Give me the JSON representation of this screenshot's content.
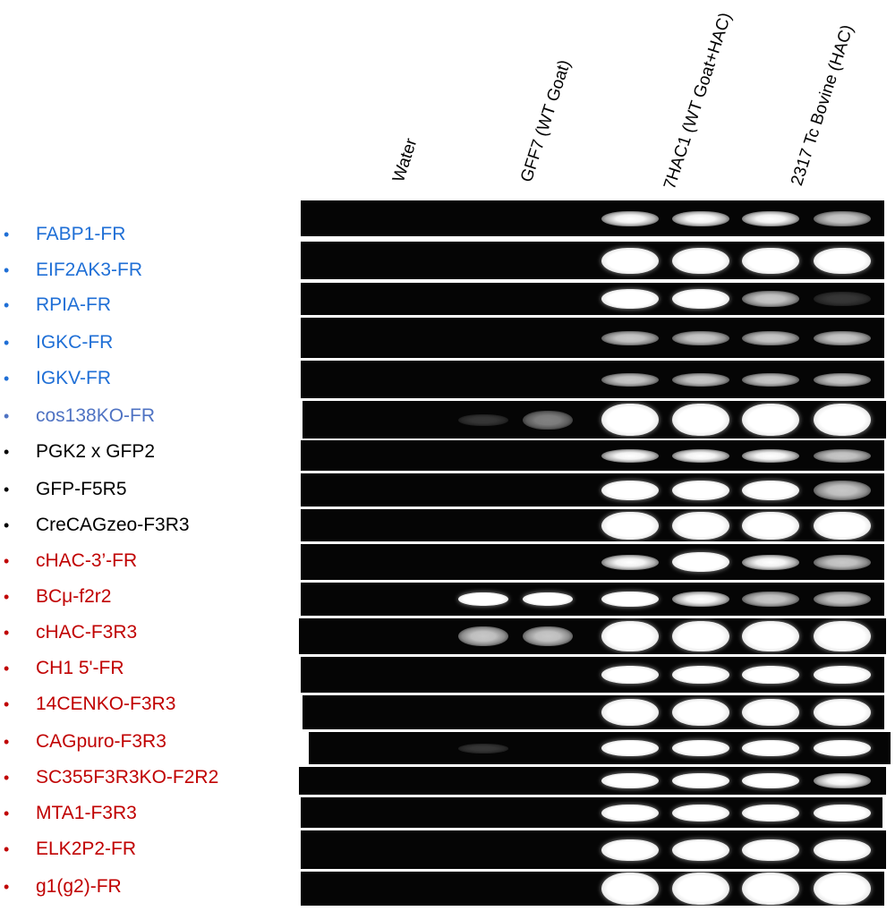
{
  "lanes": [
    {
      "name": "water",
      "label": "Water"
    },
    {
      "name": "gff7",
      "label": "GFF7 (WT Goat)"
    },
    {
      "name": "7hac1",
      "label": "7HAC1 (WT Goat+HAC)"
    },
    {
      "name": "2317",
      "label": "2317 Tc Bovine (HAC)"
    }
  ],
  "colors": {
    "blue": "#1f6fd6",
    "slate": "#4f73c3",
    "black": "#000000",
    "red": "#c00000"
  },
  "rows": [
    {
      "label": "FABP1-FR",
      "color": "blue"
    },
    {
      "label": "EIF2AK3-FR",
      "color": "blue"
    },
    {
      "label": "RPIA-FR",
      "color": "blue"
    },
    {
      "label": "IGKC-FR",
      "color": "blue"
    },
    {
      "label": "IGKV-FR",
      "color": "blue"
    },
    {
      "label": "cos138KO-FR",
      "color": "slate"
    },
    {
      "label": "PGK2 x GFP2",
      "color": "black"
    },
    {
      "label": "GFP-F5R5",
      "color": "black"
    },
    {
      "label": "CreCAGzeo-F3R3",
      "color": "black"
    },
    {
      "label": "cHAC-3’-FR",
      "color": "red"
    },
    {
      "label": "BCμ-f2r2",
      "color": "red"
    },
    {
      "label": "cHAC-F3R3",
      "color": "red"
    },
    {
      "label": "CH1 5'-FR",
      "color": "red"
    },
    {
      "label": "14CENKO-F3R3",
      "color": "red"
    },
    {
      "label": "CAGpuro-F3R3",
      "color": "red"
    },
    {
      "label": "SC355F3R3KO-F2R2",
      "color": "red"
    },
    {
      "label": "MTA1-F3R3",
      "color": "red"
    },
    {
      "label": "ELK2P2-FR",
      "color": "red"
    },
    {
      "label": "g1(g2)-FR",
      "color": "red"
    }
  ]
}
